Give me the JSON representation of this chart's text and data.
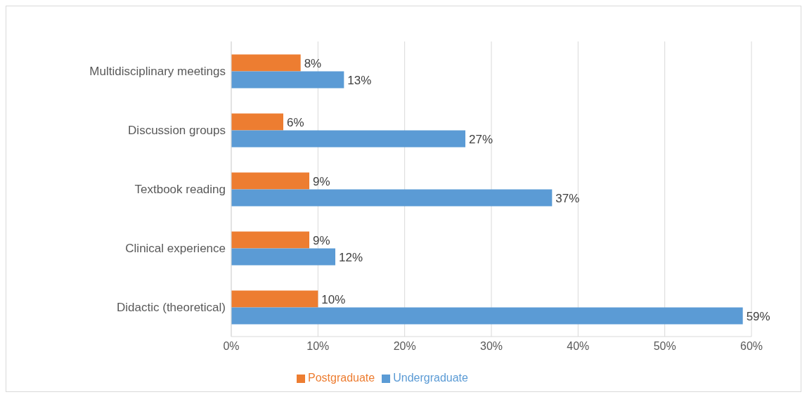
{
  "chart_data": {
    "type": "bar",
    "orientation": "horizontal",
    "categories": [
      "Multidisciplinary meetings",
      "Discussion  groups",
      "Textbook reading",
      "Clinical experience",
      "Didactic (theoretical)"
    ],
    "series": [
      {
        "name": "Postgraduate",
        "color": "#ed7d31",
        "values": [
          8,
          6,
          9,
          9,
          10
        ],
        "value_labels": [
          "8%",
          "6%",
          "9%",
          "9%",
          "10%"
        ]
      },
      {
        "name": "Undergraduate",
        "color": "#5b9bd5",
        "values": [
          13,
          27,
          37,
          12,
          59
        ],
        "value_labels": [
          "13%",
          "27%",
          "37%",
          "12%",
          "59%"
        ]
      }
    ],
    "xlim": [
      0,
      60
    ],
    "xticks": [
      {
        "value": 0,
        "label": "0%"
      },
      {
        "value": 10,
        "label": "10%"
      },
      {
        "value": 20,
        "label": "20%"
      },
      {
        "value": 30,
        "label": "30%"
      },
      {
        "value": 40,
        "label": "40%"
      },
      {
        "value": 50,
        "label": "50%"
      },
      {
        "value": 60,
        "label": "60%"
      }
    ],
    "grid": "x",
    "legend": "bottom"
  }
}
